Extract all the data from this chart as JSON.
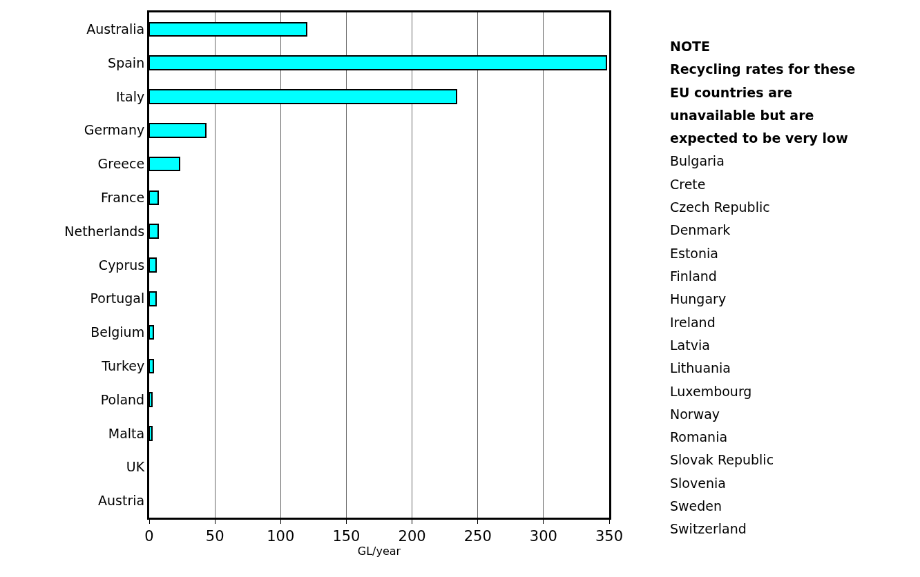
{
  "chart_data": {
    "type": "bar",
    "orientation": "horizontal",
    "xlabel": "GL/year",
    "categories": [
      "Australia",
      "Spain",
      "Italy",
      "Germany",
      "Greece",
      "France",
      "Netherlands",
      "Cyprus",
      "Portugal",
      "Belgium",
      "Turkey",
      "Poland",
      "Malta",
      "UK",
      "Austria"
    ],
    "values": [
      120,
      348,
      234,
      43,
      23,
      7,
      7,
      5,
      5,
      3,
      3,
      2,
      2,
      0,
      0
    ],
    "color": "#00ffff",
    "xlim": [
      0,
      350
    ],
    "xticks": [
      0,
      50,
      100,
      150,
      200,
      250,
      300,
      350
    ],
    "grid": "x",
    "legend": false,
    "annotations": [
      "NOTE",
      "Recycling rates for these EU countries are unavailable but are expected to be very low",
      "Bulgaria",
      "Crete",
      "Czech Republic",
      "Denmark",
      "Estonia",
      "Finland",
      "Hungary",
      "Ireland",
      "Latvia",
      "Lithuania",
      "Luxembourg",
      "Norway",
      "Romania",
      "Slovak Republic",
      "Slovenia",
      "Sweden",
      "Switzerland"
    ]
  }
}
